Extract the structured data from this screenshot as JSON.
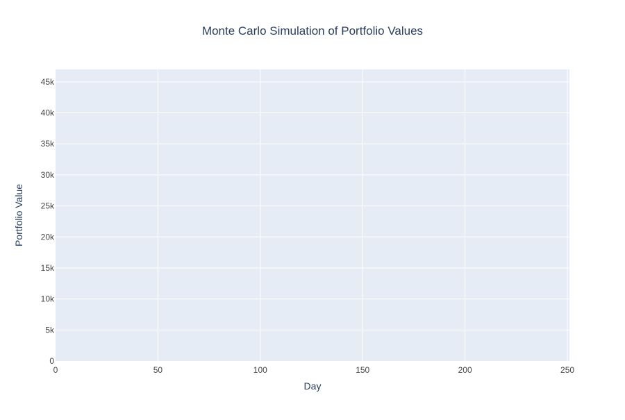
{
  "chart_data": {
    "type": "line",
    "title": "Monte Carlo Simulation of Portfolio Values",
    "xlabel": "Day",
    "ylabel": "Portfolio Value",
    "xlim": [
      0,
      251
    ],
    "ylim": [
      0,
      47000
    ],
    "x_ticks": [
      0,
      50,
      100,
      150,
      200,
      250
    ],
    "x_tick_labels": [
      "0",
      "50",
      "100",
      "150",
      "200",
      "250"
    ],
    "y_ticks": [
      0,
      5000,
      10000,
      15000,
      20000,
      25000,
      30000,
      35000,
      40000,
      45000
    ],
    "y_tick_labels": [
      "0",
      "5k",
      "10k",
      "15k",
      "20k",
      "25k",
      "30k",
      "35k",
      "40k",
      "45k"
    ],
    "grid": true,
    "legend": "none",
    "series": []
  },
  "colors": {
    "plot_background": "#e5ecf6",
    "grid": "#ffffff",
    "text": "#2a3f5f",
    "tick_text": "#444444"
  }
}
